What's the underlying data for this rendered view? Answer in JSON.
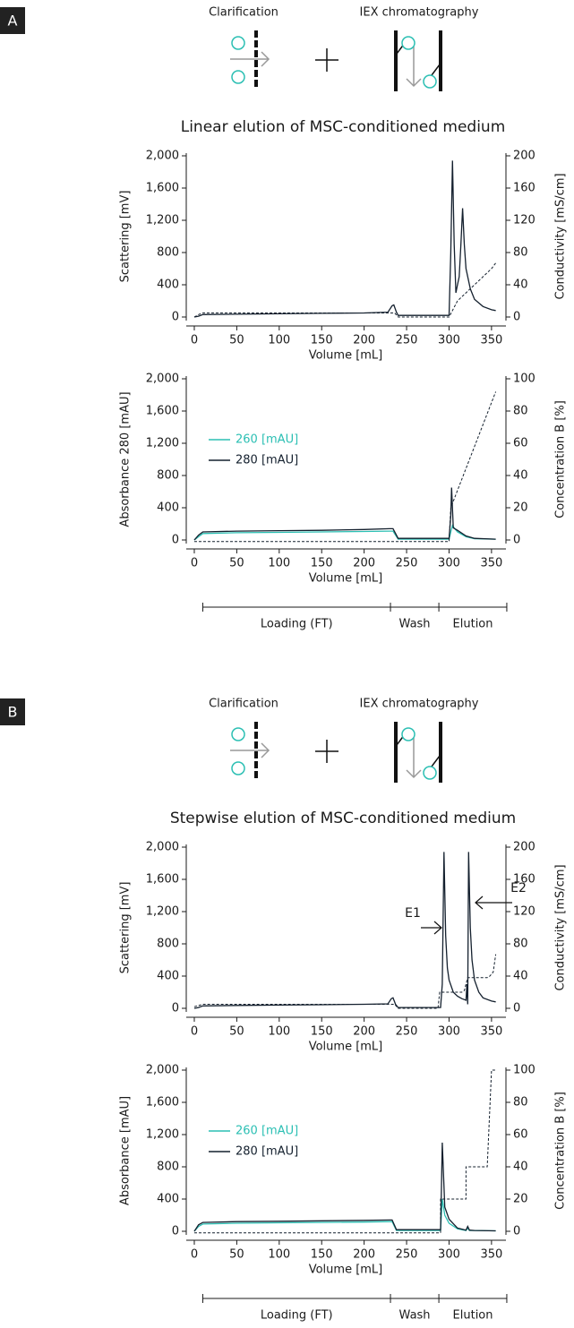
{
  "panels": [
    {
      "label": "A",
      "steps": [
        "Clarification",
        "IEX chromatography"
      ],
      "title": "Linear elution of MSC-conditioned medium",
      "chart_data": [
        {
          "type": "line",
          "xlabel": "Volume [mL]",
          "ylabel": "Scattering [mV]",
          "y2label": "Conductivity [mS/cm]",
          "xlim": [
            -10,
            367
          ],
          "ylim": [
            0,
            2000
          ],
          "y2lim": [
            0,
            200
          ],
          "xticks": [
            0,
            50,
            100,
            150,
            200,
            250,
            300,
            350
          ],
          "yticks": [
            0,
            400,
            800,
            {
              "value": 1200,
              "label": "1,200"
            },
            {
              "value": 1600,
              "label": "1,600"
            },
            {
              "value": 2000,
              "label": "2,000"
            }
          ],
          "y2ticks": [
            0,
            40,
            80,
            120,
            160,
            200
          ],
          "series": [
            {
              "color": "#14202e",
              "x": [
                0,
                5,
                10,
                50,
                100,
                150,
                200,
                228,
                233,
                235,
                238,
                240,
                250,
                300,
                302,
                304,
                306,
                308,
                310,
                312,
                314,
                316,
                318,
                320,
                325,
                330,
                340,
                350,
                355
              ],
              "values": [
                0,
                10,
                30,
                35,
                40,
                45,
                50,
                60,
                140,
                150,
                60,
                20,
                20,
                20,
                800,
                1940,
                900,
                300,
                400,
                500,
                900,
                1350,
                900,
                600,
                350,
                220,
                130,
                90,
                80
              ]
            },
            {
              "color": "#14202e",
              "axis": "y2",
              "line_style": "dashed",
              "x": [
                0,
                5,
                10,
                230,
                236,
                240,
                300,
                305,
                310,
                320,
                330,
                340,
                350,
                355
              ],
              "values": [
                0,
                3,
                5,
                5,
                5,
                0,
                0,
                10,
                20,
                30,
                40,
                50,
                60,
                67
              ]
            }
          ]
        },
        {
          "type": "line",
          "xlabel": "Volume [mL]",
          "ylabel": "Absorbance 280 [mAU]",
          "y2label": "Concentration B [%]",
          "xlim": [
            -10,
            367
          ],
          "ylim": [
            0,
            2000
          ],
          "y2lim": [
            0,
            100
          ],
          "xticks": [
            0,
            50,
            100,
            150,
            200,
            250,
            300,
            350
          ],
          "yticks": [
            0,
            400,
            800,
            {
              "value": 1200,
              "label": "1,200"
            },
            {
              "value": 1600,
              "label": "1,600"
            },
            {
              "value": 2000,
              "label": "2,000"
            }
          ],
          "y2ticks": [
            0,
            20,
            40,
            60,
            80,
            100
          ],
          "legend": "left",
          "series": [
            {
              "name": "260 [mAU]",
              "color": "#2bbfb3",
              "x": [
                0,
                5,
                10,
                50,
                100,
                150,
                200,
                230,
                234,
                240,
                300,
                302,
                304,
                306,
                310,
                320,
                330,
                355
              ],
              "values": [
                0,
                40,
                80,
                90,
                95,
                100,
                105,
                110,
                110,
                10,
                10,
                100,
                180,
                150,
                100,
                40,
                15,
                10
              ]
            },
            {
              "name": "280 [mAU]",
              "color": "#14202e",
              "x": [
                0,
                5,
                10,
                50,
                100,
                150,
                200,
                230,
                234,
                240,
                300,
                302,
                303,
                305,
                310,
                320,
                330,
                355
              ],
              "values": [
                0,
                60,
                100,
                110,
                115,
                120,
                130,
                140,
                140,
                20,
                20,
                300,
                650,
                150,
                120,
                50,
                20,
                10
              ]
            },
            {
              "color": "#14202e",
              "axis": "y2",
              "line_style": "dashed",
              "x": [
                0,
                300,
                302,
                355
              ],
              "values": [
                -1,
                -1,
                20,
                92
              ]
            }
          ]
        }
      ],
      "phase_labels": [
        "Loading (FT)",
        "Wash",
        "Elution"
      ],
      "phase_bounds": [
        10,
        231,
        288,
        368
      ]
    },
    {
      "label": "B",
      "steps": [
        "Clarification",
        "IEX chromatography"
      ],
      "title": "Stepwise elution of MSC-conditioned medium",
      "chart_data": [
        {
          "type": "line",
          "xlabel": "Volume [mL]",
          "ylabel": "Scattering [mV]",
          "y2label": "Conductivity [mS/cm]",
          "xlim": [
            -10,
            367
          ],
          "ylim": [
            0,
            2000
          ],
          "y2lim": [
            0,
            200
          ],
          "xticks": [
            0,
            50,
            100,
            150,
            200,
            250,
            300,
            350
          ],
          "yticks": [
            0,
            400,
            800,
            {
              "value": 1200,
              "label": "1,200"
            },
            {
              "value": 1600,
              "label": "1,600"
            },
            {
              "value": 2000,
              "label": "2,000"
            }
          ],
          "y2ticks": [
            0,
            40,
            80,
            120,
            160,
            200
          ],
          "annotations": [
            "E1",
            "E2"
          ],
          "series": [
            {
              "color": "#14202e",
              "x": [
                0,
                5,
                10,
                50,
                100,
                150,
                200,
                228,
                232,
                234,
                237,
                240,
                290,
                292,
                294,
                296,
                298,
                300,
                305,
                310,
                315,
                320,
                321,
                322,
                323,
                325,
                327,
                330,
                335,
                340,
                350,
                355
              ],
              "values": [
                0,
                10,
                30,
                35,
                40,
                45,
                50,
                55,
                120,
                130,
                50,
                10,
                10,
                300,
                1940,
                900,
                500,
                350,
                200,
                150,
                120,
                100,
                300,
                50,
                1940,
                1000,
                600,
                350,
                200,
                130,
                90,
                80
              ]
            },
            {
              "color": "#14202e",
              "axis": "y2",
              "line_style": "dashed",
              "x": [
                0,
                10,
                230,
                236,
                240,
                287,
                289,
                315,
                318,
                322,
                345,
                348,
                352,
                355
              ],
              "values": [
                2,
                5,
                5,
                5,
                0,
                0,
                20,
                20,
                22,
                38,
                38,
                40,
                45,
                67
              ]
            }
          ]
        },
        {
          "type": "line",
          "xlabel": "Volume [mL]",
          "ylabel": "Absorbance [mAU]",
          "y2label": "Concentration B [%]",
          "xlim": [
            -10,
            367
          ],
          "ylim": [
            0,
            2000
          ],
          "y2lim": [
            0,
            100
          ],
          "xticks": [
            0,
            50,
            100,
            150,
            200,
            250,
            300,
            350
          ],
          "yticks": [
            0,
            400,
            800,
            {
              "value": 1200,
              "label": "1,200"
            },
            {
              "value": 1600,
              "label": "1,600"
            },
            {
              "value": 2000,
              "label": "2,000"
            }
          ],
          "y2ticks": [
            0,
            20,
            40,
            60,
            80,
            100
          ],
          "legend": "left",
          "series": [
            {
              "name": "260 [mAU]",
              "color": "#2bbfb3",
              "x": [
                0,
                5,
                10,
                50,
                100,
                150,
                200,
                230,
                233,
                238,
                290,
                291,
                292,
                295,
                300,
                310,
                320,
                322,
                324,
                330,
                355
              ],
              "values": [
                0,
                60,
                90,
                100,
                105,
                110,
                115,
                120,
                120,
                10,
                10,
                200,
                400,
                200,
                100,
                30,
                10,
                40,
                10,
                10,
                5
              ]
            },
            {
              "name": "280 [mAU]",
              "color": "#14202e",
              "x": [
                0,
                5,
                10,
                50,
                100,
                150,
                200,
                230,
                233,
                238,
                290,
                291,
                292,
                295,
                300,
                310,
                320,
                322,
                324,
                330,
                355
              ],
              "values": [
                0,
                80,
                110,
                120,
                125,
                130,
                135,
                140,
                140,
                20,
                20,
                500,
                1100,
                300,
                150,
                40,
                15,
                60,
                15,
                10,
                5
              ]
            },
            {
              "color": "#14202e",
              "axis": "y2",
              "line_style": "dashed",
              "x": [
                0,
                290,
                290,
                320,
                320,
                345,
                350,
                355
              ],
              "values": [
                -1,
                -1,
                20,
                20,
                40,
                40,
                100,
                100
              ]
            }
          ]
        }
      ],
      "phase_labels": [
        "Loading (FT)",
        "Wash",
        "Elution"
      ],
      "phase_bounds": [
        10,
        231,
        288,
        368
      ]
    }
  ]
}
